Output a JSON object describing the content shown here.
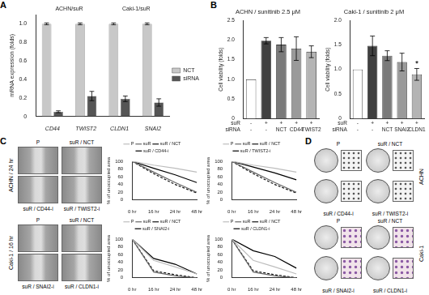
{
  "panel_labels": [
    "A",
    "B",
    "C",
    "D"
  ],
  "chart_data": [
    {
      "type": "bar",
      "ylabel": "mRNA expression (folds)",
      "categories": [
        "CD44",
        "TWIST2",
        "CLDN1",
        "SNAI2"
      ],
      "groups": [
        {
          "label": "ACHN/suR",
          "categories": [
            "CD44",
            "TWIST2"
          ]
        },
        {
          "label": "Caki-1/suR",
          "categories": [
            "CLDN1",
            "SNAI2"
          ]
        }
      ],
      "series": [
        {
          "name": "NCT",
          "color": "#c8c8c8",
          "values": [
            1,
            1,
            1,
            1
          ],
          "errors": [
            0.01,
            0.01,
            0.01,
            0.01
          ]
        },
        {
          "name": "siRNA",
          "color": "#555555",
          "values": [
            0.05,
            0.22,
            0.19,
            0.15
          ],
          "errors": [
            0.01,
            0.05,
            0.03,
            0.04
          ]
        }
      ],
      "ylim": [
        0,
        1.1
      ],
      "yticks": [
        0,
        0.2,
        0.4,
        0.6,
        0.8,
        {
          "value": 1,
          "label": "1.0"
        }
      ],
      "grid": false,
      "legend": "right"
    },
    {
      "type": "bar",
      "title": "ACHN / sunitinib 2.5 μM",
      "ylabel": "Cell viability (folds)",
      "row_labels": [
        "suR",
        "siRNA"
      ],
      "categories": [
        [
          "-",
          "-"
        ],
        [
          "+",
          "-"
        ],
        [
          "+",
          "NCT"
        ],
        [
          "+",
          "CD44"
        ],
        [
          "+",
          "TWIST2"
        ]
      ],
      "values": [
        1,
        1.98,
        1.88,
        1.78,
        1.7
      ],
      "errors": [
        0,
        0.08,
        0.18,
        0.3,
        0.15
      ],
      "colors": [
        "#ffffff",
        "#404040",
        "#7a7a7a",
        "#9a9a9a",
        "#b4b4b4"
      ],
      "ylim": [
        0,
        2.5
      ],
      "yticks": [
        0,
        0.5,
        {
          "value": 1,
          "label": "1.0"
        },
        1.5,
        {
          "value": 2,
          "label": "2.0"
        },
        2.5
      ],
      "grid": false
    },
    {
      "type": "bar",
      "title": "Caki-1 / sunitinib 2 μM",
      "ylabel": "Cell viability (folds)",
      "row_labels": [
        "suR",
        "siRNA"
      ],
      "categories": [
        [
          "-",
          "-"
        ],
        [
          "+",
          "-"
        ],
        [
          "+",
          "NCT"
        ],
        [
          "+",
          "SNAI2"
        ],
        [
          "+",
          "CLDN1"
        ]
      ],
      "values": [
        1,
        1.48,
        1.28,
        1.15,
        0.9
      ],
      "errors": [
        0,
        0.2,
        0.1,
        0.18,
        0.12
      ],
      "colors": [
        "#ffffff",
        "#404040",
        "#7a7a7a",
        "#9a9a9a",
        "#b4b4b4"
      ],
      "annotations": [
        {
          "x": 4,
          "text": "*"
        }
      ],
      "ylim": [
        0,
        2
      ],
      "yticks": [
        0,
        0.5,
        {
          "value": 1,
          "label": "1.0"
        },
        1.5,
        {
          "value": 2,
          "label": "2.0"
        }
      ],
      "grid": false
    },
    {
      "type": "line",
      "ylabel": "% of unoccupied area",
      "categories": [
        "0 hr",
        "16 hr",
        "24 hr",
        "48 hr"
      ],
      "series": [
        {
          "name": "P",
          "color": "#bdbdbd",
          "line_style": "solid",
          "values": [
            100,
            90,
            82,
            72
          ]
        },
        {
          "name": "suR",
          "color": "#666666",
          "line_style": "solid",
          "values": [
            100,
            72,
            45,
            20
          ]
        },
        {
          "name": "suR / NCT",
          "color": "#111111",
          "line_style": "dashed",
          "values": [
            100,
            68,
            40,
            18
          ]
        },
        {
          "name": "suR / CD44-i",
          "color": "#000000",
          "line_style": "solid",
          "values": [
            100,
            82,
            65,
            45
          ]
        }
      ],
      "ylim": [
        0,
        100
      ],
      "yticks": [
        0,
        20,
        40,
        60,
        80,
        100
      ],
      "grid": false,
      "legend": "top"
    },
    {
      "type": "line",
      "ylabel": "% of unoccupied area",
      "categories": [
        "0 hr",
        "16 hr",
        "24 hr",
        "48 hr"
      ],
      "series": [
        {
          "name": "P",
          "color": "#bdbdbd",
          "line_style": "solid",
          "values": [
            100,
            90,
            82,
            72
          ]
        },
        {
          "name": "suR",
          "color": "#666666",
          "line_style": "solid",
          "values": [
            100,
            72,
            45,
            20
          ]
        },
        {
          "name": "suR / NCT",
          "color": "#111111",
          "line_style": "dashed",
          "values": [
            100,
            68,
            40,
            18
          ]
        },
        {
          "name": "suR / TWIST2-i",
          "color": "#000000",
          "line_style": "solid",
          "values": [
            100,
            85,
            70,
            52
          ]
        }
      ],
      "ylim": [
        0,
        100
      ],
      "yticks": [
        0,
        20,
        40,
        60,
        80,
        100
      ],
      "grid": false,
      "legend": "top"
    },
    {
      "type": "line",
      "ylabel": "% of unoccupied area",
      "categories": [
        "0 hr",
        "16 hr",
        "24 hr",
        "48 hr"
      ],
      "series": [
        {
          "name": "P",
          "color": "#bdbdbd",
          "line_style": "solid",
          "values": [
            100,
            45,
            28,
            10
          ]
        },
        {
          "name": "suR",
          "color": "#666666",
          "line_style": "solid",
          "values": [
            100,
            15,
            5,
            0
          ]
        },
        {
          "name": "suR / NCT",
          "color": "#111111",
          "line_style": "dashed",
          "values": [
            100,
            18,
            8,
            0
          ]
        },
        {
          "name": "suR / SNAI2-i",
          "color": "#000000",
          "line_style": "solid",
          "values": [
            100,
            50,
            35,
            10
          ]
        }
      ],
      "ylim": [
        0,
        100
      ],
      "yticks": [
        0,
        20,
        40,
        60,
        80,
        100
      ],
      "grid": false,
      "legend": "top"
    },
    {
      "type": "line",
      "ylabel": "% of unoccupied area",
      "categories": [
        "0 hr",
        "16 hr",
        "24 hr",
        "48 hr"
      ],
      "series": [
        {
          "name": "P",
          "color": "#bdbdbd",
          "line_style": "solid",
          "values": [
            100,
            45,
            28,
            10
          ]
        },
        {
          "name": "suR",
          "color": "#666666",
          "line_style": "solid",
          "values": [
            100,
            15,
            5,
            0
          ]
        },
        {
          "name": "suR / NCT",
          "color": "#111111",
          "line_style": "dashed",
          "values": [
            100,
            18,
            8,
            0
          ]
        },
        {
          "name": "suR / CLDN1-i",
          "color": "#000000",
          "line_style": "solid",
          "values": [
            100,
            70,
            55,
            25
          ]
        }
      ],
      "ylim": [
        0,
        100
      ],
      "yticks": [
        0,
        20,
        40,
        60,
        80,
        100
      ],
      "grid": false,
      "legend": "top"
    }
  ],
  "micrographs": [
    {
      "label": "ACHN / 24 hr",
      "images": [
        "P",
        "suR / NCT",
        "suR / CD44-i",
        "suR / TWIST2-i"
      ]
    },
    {
      "label": "Caki-1 / 16 hr",
      "images": [
        "P",
        "suR / NCT",
        "suR / SNAI2-i",
        "suR / CLDN1-i"
      ]
    }
  ],
  "invasion": [
    {
      "label": "ACHN",
      "images": [
        "P",
        "suR / NCT",
        "suR / CD44-i",
        "suR / TWIST2-i"
      ]
    },
    {
      "label": "Caki-1",
      "images": [
        "P",
        "suR / NCT",
        "suR / SNAI2-i",
        "suR / CLDN1-i"
      ]
    }
  ]
}
